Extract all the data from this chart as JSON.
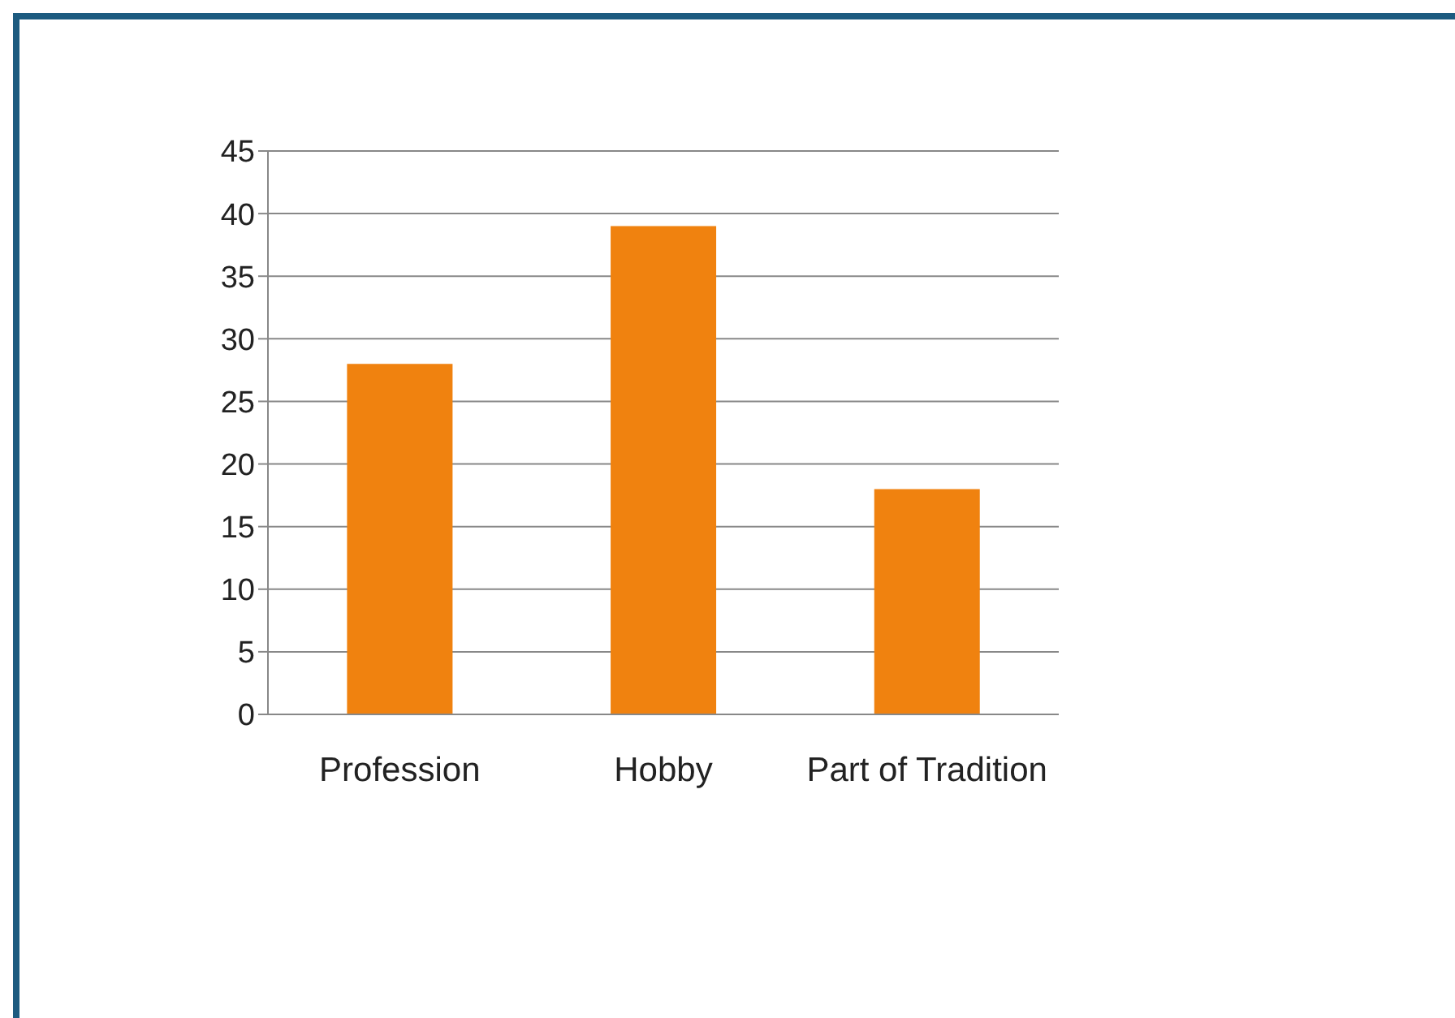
{
  "chart_data": {
    "type": "bar",
    "categories": [
      "Profession",
      "Hobby",
      "Part of Tradition"
    ],
    "values": [
      28,
      39,
      18
    ],
    "color": "#f0820f",
    "ylim": [
      0,
      45
    ],
    "yticks": [
      0,
      5,
      10,
      15,
      20,
      25,
      30,
      35,
      40,
      45
    ],
    "grid": "y"
  }
}
